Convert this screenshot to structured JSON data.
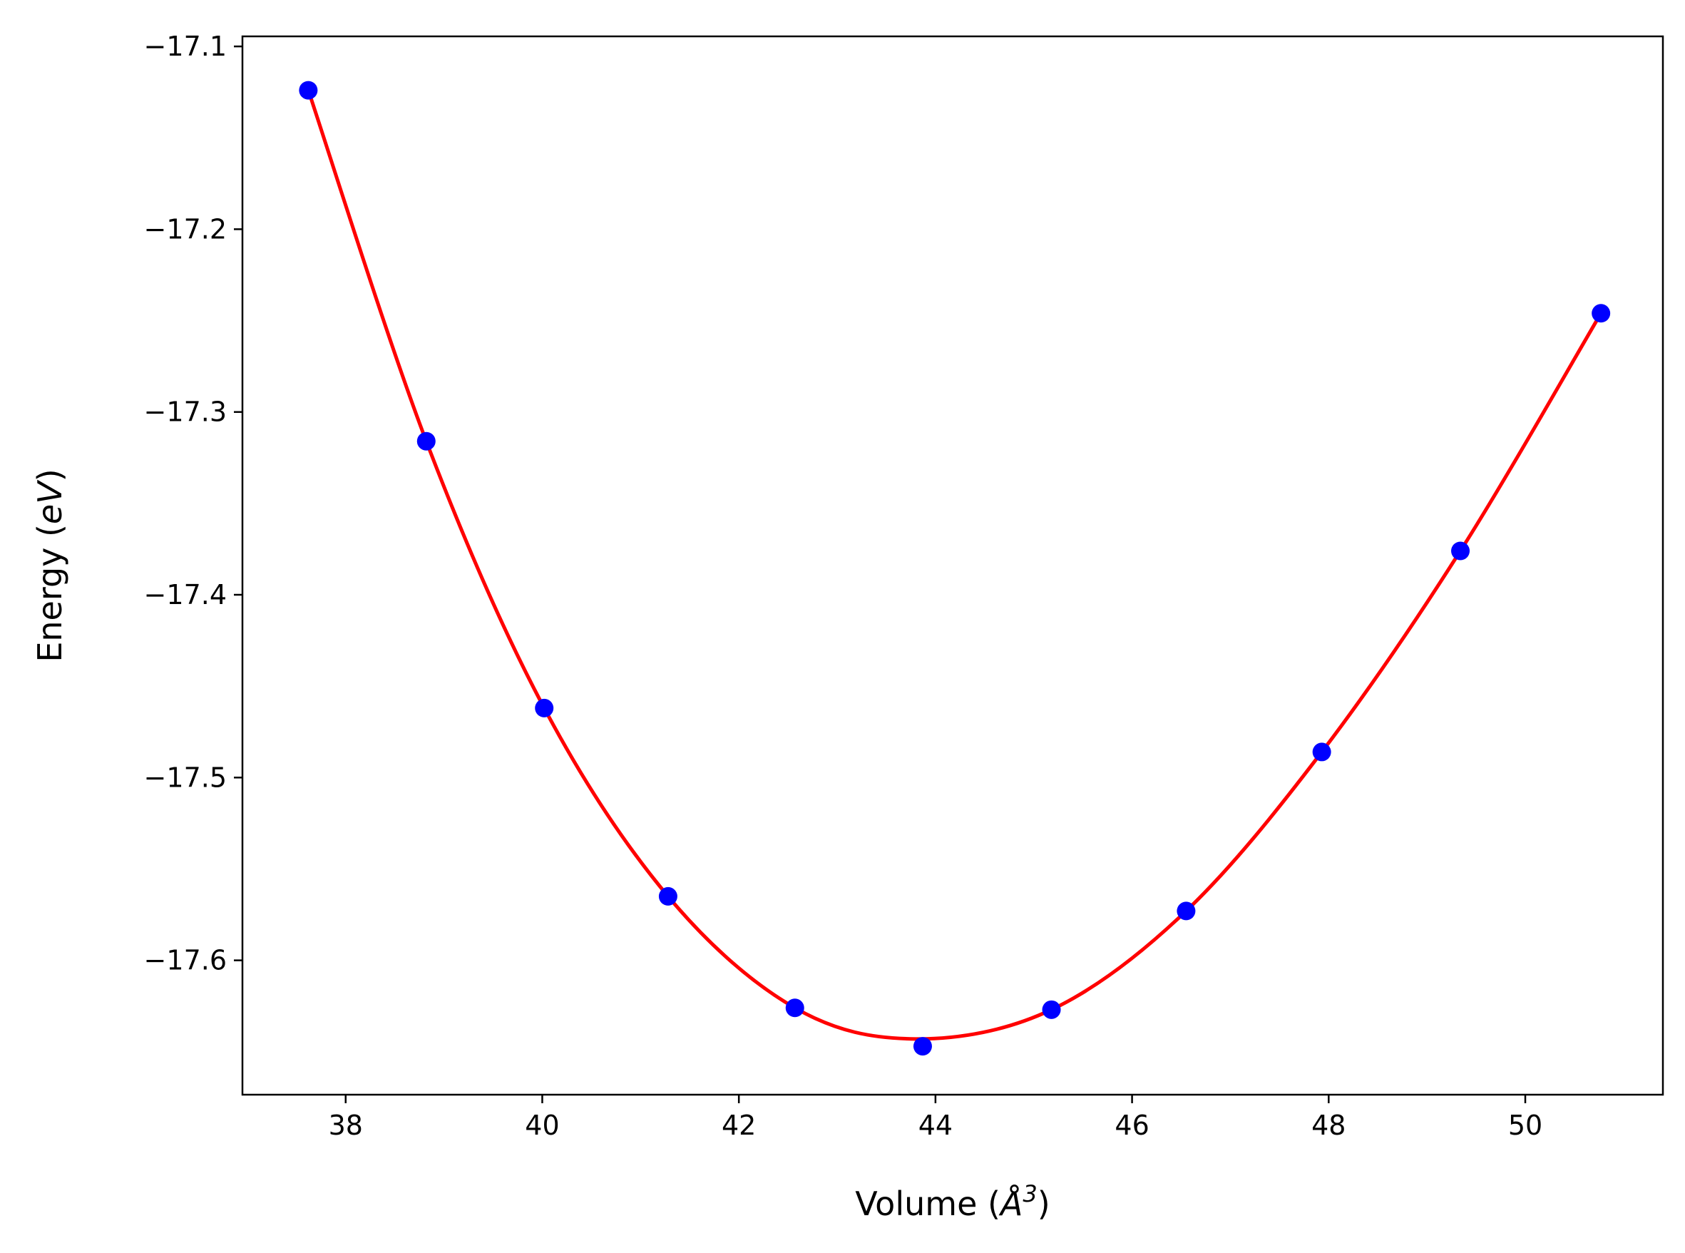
{
  "chart_data": {
    "type": "scatter",
    "title": "",
    "xlabel": "Volume (",
    "xlabel_symbol": "Å",
    "xlabel_exponent": "3",
    "xlabel_close": ")",
    "ylabel": "Energy (",
    "ylabel_unit": "eV",
    "ylabel_close": ")",
    "xlim": [
      36.95,
      51.4
    ],
    "ylim": [
      -17.6735,
      -17.0945
    ],
    "xticks": [
      38,
      40,
      42,
      44,
      46,
      48,
      50
    ],
    "yticks": [
      -17.1,
      -17.2,
      -17.3,
      -17.4,
      -17.5,
      -17.6
    ],
    "xtick_labels": [
      "38",
      "40",
      "42",
      "44",
      "46",
      "48",
      "50"
    ],
    "ytick_labels": [
      "−17.1",
      "−17.2",
      "−17.3",
      "−17.4",
      "−17.5",
      "−17.6"
    ],
    "grid": false,
    "series": [
      {
        "kind": "points",
        "color": "#0000ff",
        "x": [
          37.62,
          38.82,
          40.02,
          41.28,
          42.57,
          43.87,
          45.18,
          46.55,
          47.93,
          49.34,
          50.77
        ],
        "y": [
          -17.124,
          -17.316,
          -17.462,
          -17.565,
          -17.626,
          -17.647,
          -17.627,
          -17.573,
          -17.486,
          -17.376,
          -17.246
        ]
      },
      {
        "kind": "fit-curve",
        "color": "#ff0000",
        "x_range": [
          37.62,
          50.77
        ],
        "fit_points": [
          [
            37.62,
            -17.124
          ],
          [
            38.82,
            -17.316
          ],
          [
            40.02,
            -17.462
          ],
          [
            41.28,
            -17.565
          ],
          [
            42.57,
            -17.626
          ],
          [
            43.8,
            -17.643
          ],
          [
            45.18,
            -17.627
          ],
          [
            46.55,
            -17.573
          ],
          [
            47.93,
            -17.486
          ],
          [
            49.34,
            -17.376
          ],
          [
            50.77,
            -17.246
          ]
        ]
      }
    ]
  }
}
